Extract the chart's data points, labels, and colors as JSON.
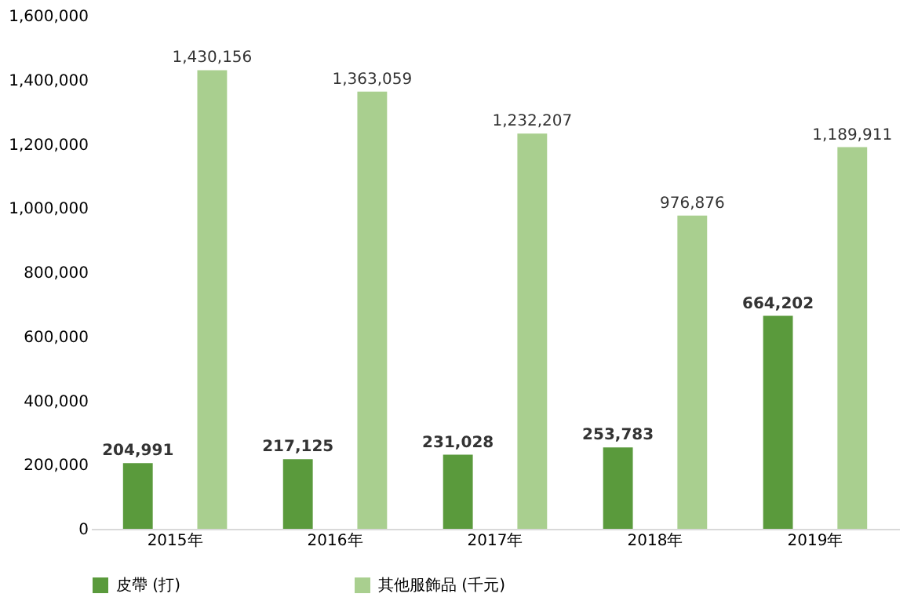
{
  "chart_data": {
    "type": "bar",
    "categories": [
      "2015年",
      "2016年",
      "2017年",
      "2018年",
      "2019年"
    ],
    "series": [
      {
        "name": "皮帶 (打)",
        "color": "#5a9a3c",
        "values": [
          204991,
          217125,
          231028,
          253783,
          664202
        ],
        "value_labels": [
          "204,991",
          "217,125",
          "231,028",
          "253,783",
          "664,202"
        ]
      },
      {
        "name": "其他服飾品 (千元)",
        "color": "#a9cf8f",
        "values": [
          1430156,
          1363059,
          1232207,
          976876,
          1189911
        ],
        "value_labels": [
          "1,430,156",
          "1,363,059",
          "1,232,207",
          "976,876",
          "1,189,911"
        ]
      }
    ],
    "ylim": [
      0,
      1600000
    ],
    "yticks": [
      {
        "value": 0,
        "label": "0"
      },
      {
        "value": 200000,
        "label": "200,000"
      },
      {
        "value": 400000,
        "label": "400,000"
      },
      {
        "value": 600000,
        "label": "600,000"
      },
      {
        "value": 800000,
        "label": "800,000"
      },
      {
        "value": 1000000,
        "label": "1,000,000"
      },
      {
        "value": 1200000,
        "label": "1,200,000"
      },
      {
        "value": 1400000,
        "label": "1,400,000"
      },
      {
        "value": 1600000,
        "label": "1,600,000"
      }
    ],
    "legend": "bottom",
    "grid": false
  }
}
